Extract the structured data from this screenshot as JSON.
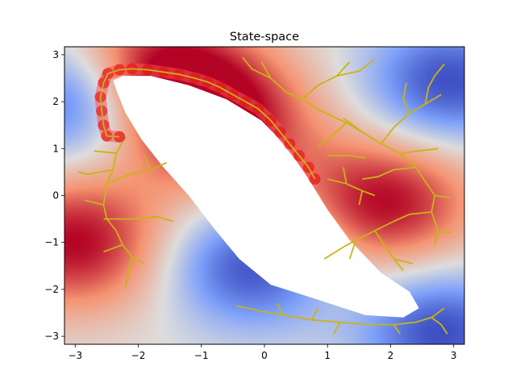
{
  "chart_data": {
    "type": "heatmap",
    "title": "State-space",
    "xlabel": "",
    "ylabel": "",
    "xlim": [
      -3.17,
      3.17
    ],
    "ylim": [
      -3.17,
      3.17
    ],
    "xticks": [
      -3,
      -2,
      -1,
      0,
      1,
      2,
      3
    ],
    "yticks": [
      -3,
      -2,
      -1,
      0,
      1,
      2,
      3
    ],
    "tick_labels_x": [
      "−3",
      "−2",
      "−1",
      "0",
      "1",
      "2",
      "3"
    ],
    "tick_labels_y": [
      "−3",
      "−2",
      "−1",
      "0",
      "1",
      "2",
      "3"
    ],
    "grid": false,
    "colormap": "coolwarm",
    "colors": {
      "tree": "#c8b414",
      "path": "#e01010",
      "path_glow": "#ff5050"
    },
    "field_extrema": {
      "warm": [
        [
          1.9,
          -0.15
        ],
        [
          -3.0,
          -1.0
        ],
        [
          -1.8,
          2.6
        ],
        [
          -0.7,
          1.6
        ]
      ],
      "cool": [
        [
          -0.2,
          -1.5
        ],
        [
          -3.0,
          2.0
        ],
        [
          2.9,
          2.4
        ],
        [
          2.8,
          -2.9
        ]
      ]
    },
    "obstacle": [
      [
        -2.35,
        2.25
      ],
      [
        -2.4,
        2.45
      ],
      [
        -2.25,
        2.55
      ],
      [
        -1.8,
        2.55
      ],
      [
        -1.2,
        2.35
      ],
      [
        -0.6,
        2.05
      ],
      [
        -0.05,
        1.6
      ],
      [
        0.35,
        1.05
      ],
      [
        0.7,
        0.35
      ],
      [
        1.0,
        -0.3
      ],
      [
        1.35,
        -0.95
      ],
      [
        1.85,
        -1.65
      ],
      [
        2.3,
        -2.05
      ],
      [
        2.45,
        -2.4
      ],
      [
        2.2,
        -2.6
      ],
      [
        1.6,
        -2.55
      ],
      [
        0.8,
        -2.2
      ],
      [
        0.1,
        -1.9
      ],
      [
        -0.4,
        -1.35
      ],
      [
        -0.8,
        -0.7
      ],
      [
        -1.2,
        0.0
      ],
      [
        -1.6,
        0.6
      ],
      [
        -1.95,
        1.2
      ],
      [
        -2.2,
        1.75
      ]
    ],
    "tree": [
      [
        [
          -2.2,
          1.25
        ],
        [
          -2.35,
          0.9
        ],
        [
          -2.4,
          0.55
        ],
        [
          -2.5,
          0.25
        ],
        [
          -2.55,
          -0.2
        ],
        [
          -2.5,
          -0.5
        ],
        [
          -2.35,
          -0.75
        ],
        [
          -2.25,
          -1.05
        ],
        [
          -2.1,
          -1.3
        ],
        [
          -2.15,
          -1.6
        ],
        [
          -2.2,
          -1.95
        ]
      ],
      [
        [
          -2.5,
          0.25
        ],
        [
          -2.15,
          0.45
        ],
        [
          -1.8,
          0.55
        ],
        [
          -1.55,
          0.7
        ]
      ],
      [
        [
          -2.55,
          -0.5
        ],
        [
          -2.1,
          -0.5
        ],
        [
          -1.7,
          -0.45
        ],
        [
          -1.45,
          -0.55
        ]
      ],
      [
        [
          -2.55,
          -0.2
        ],
        [
          -2.85,
          -0.1
        ]
      ],
      [
        [
          -2.4,
          0.55
        ],
        [
          -2.8,
          0.45
        ],
        [
          -2.95,
          0.5
        ]
      ],
      [
        [
          -2.35,
          0.9
        ],
        [
          -2.7,
          0.95
        ]
      ],
      [
        [
          -2.25,
          -1.05
        ],
        [
          -2.55,
          -1.2
        ]
      ],
      [
        [
          -2.1,
          -1.3
        ],
        [
          -1.9,
          -1.45
        ]
      ],
      [
        [
          -1.8,
          0.55
        ],
        [
          -1.9,
          0.85
        ]
      ],
      [
        [
          -0.35,
          2.95
        ],
        [
          -0.2,
          2.7
        ],
        [
          0.1,
          2.5
        ],
        [
          0.35,
          2.2
        ],
        [
          0.6,
          2.05
        ],
        [
          0.9,
          1.8
        ],
        [
          1.3,
          1.55
        ],
        [
          1.55,
          1.35
        ],
        [
          1.85,
          1.1
        ],
        [
          2.15,
          0.9
        ],
        [
          2.4,
          0.6
        ],
        [
          2.55,
          0.3
        ],
        [
          2.7,
          0.0
        ],
        [
          2.65,
          -0.35
        ],
        [
          2.75,
          -0.75
        ],
        [
          2.7,
          -1.05
        ]
      ],
      [
        [
          0.1,
          2.5
        ],
        [
          -0.05,
          2.85
        ]
      ],
      [
        [
          0.6,
          2.05
        ],
        [
          0.85,
          2.35
        ],
        [
          1.15,
          2.55
        ],
        [
          1.5,
          2.65
        ]
      ],
      [
        [
          1.15,
          2.55
        ],
        [
          1.35,
          2.85
        ]
      ],
      [
        [
          1.5,
          2.65
        ],
        [
          1.75,
          2.9
        ]
      ],
      [
        [
          1.3,
          1.55
        ],
        [
          1.05,
          1.25
        ],
        [
          0.85,
          1.05
        ]
      ],
      [
        [
          1.85,
          1.1
        ],
        [
          2.05,
          1.45
        ],
        [
          2.3,
          1.75
        ],
        [
          2.55,
          1.95
        ],
        [
          2.8,
          2.15
        ]
      ],
      [
        [
          2.3,
          1.75
        ],
        [
          2.2,
          2.05
        ],
        [
          2.25,
          2.4
        ]
      ],
      [
        [
          2.55,
          1.95
        ],
        [
          2.6,
          2.3
        ],
        [
          2.7,
          2.55
        ],
        [
          2.85,
          2.8
        ]
      ],
      [
        [
          1.55,
          1.35
        ],
        [
          1.25,
          1.65
        ]
      ],
      [
        [
          2.15,
          0.9
        ],
        [
          2.45,
          0.95
        ],
        [
          2.75,
          1.0
        ]
      ],
      [
        [
          2.4,
          0.6
        ],
        [
          2.05,
          0.55
        ],
        [
          1.8,
          0.4
        ],
        [
          1.55,
          0.35
        ]
      ],
      [
        [
          2.7,
          0.0
        ],
        [
          2.95,
          -0.05
        ]
      ],
      [
        [
          2.65,
          -0.35
        ],
        [
          2.3,
          -0.4
        ],
        [
          2.05,
          -0.55
        ]
      ],
      [
        [
          2.75,
          -0.75
        ],
        [
          2.95,
          -0.8
        ]
      ],
      [
        [
          2.05,
          -0.55
        ],
        [
          1.75,
          -0.75
        ],
        [
          1.45,
          -0.95
        ],
        [
          1.25,
          -1.1
        ],
        [
          0.95,
          -1.35
        ]
      ],
      [
        [
          1.75,
          -0.75
        ],
        [
          1.9,
          -1.05
        ],
        [
          2.05,
          -1.35
        ],
        [
          2.2,
          -1.6
        ]
      ],
      [
        [
          2.05,
          -1.35
        ],
        [
          2.35,
          -1.45
        ]
      ],
      [
        [
          1.45,
          -0.95
        ],
        [
          1.35,
          -1.35
        ]
      ],
      [
        [
          1.0,
          0.35
        ],
        [
          1.3,
          0.25
        ],
        [
          1.55,
          0.1
        ],
        [
          1.75,
          0.0
        ]
      ],
      [
        [
          1.3,
          0.25
        ],
        [
          1.25,
          0.6
        ]
      ],
      [
        [
          1.55,
          0.1
        ],
        [
          1.5,
          -0.2
        ]
      ],
      [
        [
          1.0,
          0.85
        ],
        [
          1.35,
          0.85
        ],
        [
          1.6,
          0.8
        ]
      ],
      [
        [
          -0.45,
          -2.35
        ],
        [
          -0.1,
          -2.45
        ],
        [
          0.3,
          -2.55
        ],
        [
          0.75,
          -2.65
        ],
        [
          1.2,
          -2.7
        ],
        [
          1.65,
          -2.75
        ],
        [
          2.05,
          -2.75
        ],
        [
          2.4,
          -2.7
        ],
        [
          2.65,
          -2.6
        ],
        [
          2.8,
          -2.75
        ],
        [
          2.9,
          -2.95
        ]
      ],
      [
        [
          0.75,
          -2.65
        ],
        [
          0.85,
          -2.4
        ]
      ],
      [
        [
          1.2,
          -2.7
        ],
        [
          1.1,
          -2.95
        ]
      ],
      [
        [
          2.05,
          -2.75
        ],
        [
          2.15,
          -2.95
        ]
      ],
      [
        [
          2.65,
          -2.6
        ],
        [
          2.85,
          -2.4
        ]
      ],
      [
        [
          0.3,
          -2.55
        ],
        [
          0.2,
          -2.3
        ]
      ]
    ],
    "path": [
      [
        -2.3,
        1.25
      ],
      [
        -2.5,
        1.27
      ],
      [
        -2.55,
        1.5
      ],
      [
        -2.58,
        1.8
      ],
      [
        -2.6,
        2.1
      ],
      [
        -2.55,
        2.4
      ],
      [
        -2.48,
        2.6
      ],
      [
        -2.3,
        2.68
      ],
      [
        -2.1,
        2.7
      ],
      [
        -1.85,
        2.68
      ],
      [
        -1.6,
        2.63
      ],
      [
        -1.35,
        2.58
      ],
      [
        -1.1,
        2.5
      ],
      [
        -0.9,
        2.42
      ],
      [
        -0.7,
        2.3
      ],
      [
        -0.5,
        2.15
      ],
      [
        -0.3,
        2.0
      ],
      [
        -0.1,
        1.85
      ],
      [
        0.1,
        1.6
      ],
      [
        0.25,
        1.35
      ],
      [
        0.4,
        1.1
      ],
      [
        0.55,
        0.85
      ],
      [
        0.7,
        0.6
      ],
      [
        0.8,
        0.35
      ]
    ]
  }
}
